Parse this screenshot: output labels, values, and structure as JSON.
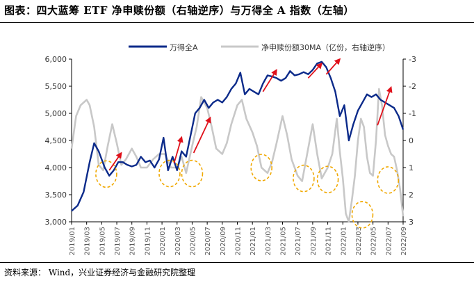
{
  "title": "图表：四大蓝筹 ETF 净申赎份额（右轴逆序）与万得全 A 指数（左轴）",
  "source": "资料来源：  Wind，兴业证券经济与金融研究院整理",
  "colors": {
    "primary": "#0b2a8a",
    "secondary": "#c8c8c8",
    "arrow": "#e0101a",
    "circle": "#f0a800"
  },
  "chart_data": {
    "type": "line",
    "legend": {
      "position": "top",
      "entries": [
        "万得全A",
        "净申赎份额30MA（亿份，右轴逆序）"
      ]
    },
    "categories": [
      "2019/01",
      "2019/03",
      "2019/05",
      "2019/07",
      "2019/09",
      "2019/11",
      "2020/01",
      "2020/03",
      "2020/05",
      "2020/07",
      "2020/09",
      "2020/11",
      "2021/01",
      "2021/03",
      "2021/05",
      "2021/07",
      "2021/09",
      "2021/11",
      "2022/01",
      "2022/03",
      "2022/05",
      "2022/07",
      "2022/09"
    ],
    "left_axis": {
      "ylim": [
        3000,
        6000
      ],
      "ticks": [
        "3,000",
        "3,500",
        "4,000",
        "4,500",
        "5,000",
        "5,500",
        "6,000"
      ]
    },
    "right_axis": {
      "ylim": [
        -3,
        3
      ],
      "inverted": true,
      "ticks": [
        "-3",
        "-2",
        "-1",
        "0",
        "1",
        "2",
        "3"
      ]
    },
    "series": [
      {
        "name": "万得全A",
        "axis": "left",
        "x": [
          0,
          0.4,
          0.8,
          1.2,
          1.5,
          1.8,
          2.2,
          2.5,
          2.8,
          3.1,
          3.4,
          3.7,
          4,
          4.3,
          4.6,
          4.9,
          5.2,
          5.5,
          5.8,
          6.1,
          6.4,
          6.7,
          7,
          7.3,
          7.6,
          7.9,
          8.2,
          8.5,
          8.8,
          9.1,
          9.4,
          9.7,
          10,
          10.3,
          10.6,
          10.9,
          11.2,
          11.5,
          11.8,
          12.1,
          12.4,
          12.7,
          13,
          13.3,
          13.6,
          13.9,
          14.2,
          14.5,
          14.8,
          15.1,
          15.4,
          15.7,
          16,
          16.3,
          16.6,
          16.9,
          17.2,
          17.5,
          17.8,
          18.1,
          18.4,
          18.7,
          19,
          19.3,
          19.6,
          19.9,
          20.2,
          20.5,
          20.8,
          21.1,
          21.4,
          21.7,
          22
        ],
        "values": [
          3200,
          3300,
          3550,
          4100,
          4450,
          4300,
          4000,
          3850,
          3950,
          4100,
          4100,
          4050,
          4020,
          4050,
          4200,
          4100,
          4130,
          4000,
          4150,
          4550,
          3950,
          4200,
          3950,
          4300,
          4200,
          4600,
          5000,
          5100,
          5250,
          5100,
          5200,
          5250,
          5200,
          5300,
          5450,
          5550,
          5750,
          5350,
          5450,
          5400,
          5350,
          5550,
          5700,
          5680,
          5650,
          5600,
          5650,
          5780,
          5700,
          5720,
          5760,
          5720,
          5800,
          5920,
          5950,
          5850,
          5650,
          5400,
          4950,
          5150,
          4500,
          4800,
          5050,
          5200,
          5350,
          5300,
          5350,
          5250,
          5200,
          5150,
          5100,
          4950,
          4700
        ]
      },
      {
        "name": "净申赎份额30MA（亿份，右轴逆序）",
        "axis": "right",
        "x": [
          0,
          0.3,
          0.6,
          1,
          1.2,
          1.5,
          1.8,
          2.1,
          2.4,
          2.7,
          3,
          3.3,
          3.6,
          4,
          4.3,
          4.6,
          5,
          5.4,
          5.8,
          6.2,
          6.6,
          7,
          7.3,
          7.6,
          8,
          8.3,
          8.6,
          9,
          9.3,
          9.6,
          10,
          10.3,
          10.6,
          11,
          11.3,
          11.6,
          12,
          12.3,
          12.6,
          13,
          13.3,
          13.6,
          14,
          14.3,
          14.6,
          15,
          15.3,
          15.6,
          16,
          16.3,
          16.6,
          17,
          17.3,
          17.6,
          17.8,
          18,
          18.2,
          18.4,
          18.6,
          18.8,
          19,
          19.2,
          19.4,
          19.6,
          19.8,
          20,
          20.2,
          20.4,
          20.6,
          20.8,
          21,
          21.2,
          21.4,
          21.6,
          21.8,
          22
        ],
        "values": [
          0.3,
          -0.9,
          -1.3,
          -1.5,
          -1.3,
          -0.5,
          0.9,
          1.1,
          0.2,
          -0.6,
          0.1,
          0.9,
          0.7,
          0.3,
          0.6,
          1.0,
          1.0,
          0.7,
          0.5,
          0.5,
          1.0,
          1.0,
          0.6,
          1.2,
          0.2,
          -0.5,
          -1.6,
          -1.2,
          -0.5,
          0.3,
          0.5,
          0.1,
          -0.6,
          -1.3,
          -1.5,
          -0.8,
          -0.3,
          0.2,
          1.0,
          1.2,
          0.8,
          0.1,
          -0.9,
          -0.2,
          0.7,
          1.3,
          1.5,
          0.6,
          -0.6,
          0.5,
          1.4,
          1.0,
          0.5,
          -0.8,
          0.4,
          1.4,
          2.7,
          3.0,
          2.2,
          1.3,
          0.0,
          -0.8,
          -0.5,
          0.6,
          1.2,
          1.3,
          0.0,
          -1.9,
          -1.3,
          -0.2,
          0.2,
          0.5,
          0.6,
          1.1,
          1.8,
          2.8
        ]
      }
    ],
    "annotations": {
      "arrows": [
        {
          "from": [
            2.5,
            3950
          ],
          "to": [
            3.3,
            4270
          ]
        },
        {
          "from": [
            6.8,
            4080
          ],
          "to": [
            7.3,
            4560
          ]
        },
        {
          "from": [
            8.1,
            4270
          ],
          "to": [
            9.2,
            4920
          ]
        },
        {
          "from": [
            12.7,
            5400
          ],
          "to": [
            13.6,
            5800
          ]
        },
        {
          "from": [
            15.7,
            5650
          ],
          "to": [
            16.6,
            5920
          ]
        },
        {
          "from": [
            16.9,
            5720
          ],
          "to": [
            17.8,
            6000
          ]
        },
        {
          "from": [
            20.3,
            4780
          ],
          "to": [
            21.2,
            5480
          ]
        }
      ],
      "circles": [
        {
          "x": 2.3,
          "y": 3880
        },
        {
          "x": 6.5,
          "y": 3890
        },
        {
          "x": 8.0,
          "y": 3890
        },
        {
          "x": 12.6,
          "y": 4000
        },
        {
          "x": 15.4,
          "y": 3800
        },
        {
          "x": 17.0,
          "y": 3780
        },
        {
          "x": 19.3,
          "y": 3130
        },
        {
          "x": 21.0,
          "y": 3770
        }
      ]
    }
  }
}
